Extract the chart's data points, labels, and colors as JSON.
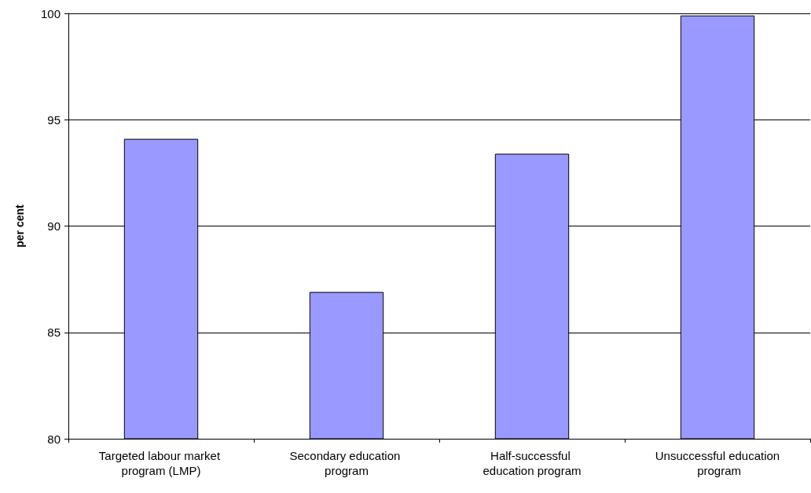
{
  "chart_data": {
    "type": "bar",
    "ylabel": "per cent",
    "categories": [
      "Targeted labour market program (LMP)",
      "Secondary education program",
      "Half-successful education program",
      "Unsuccessful education program"
    ],
    "values": [
      94.1,
      86.9,
      93.4,
      99.9
    ],
    "color": "#9999ff",
    "ylim": [
      80,
      100
    ],
    "yticks": [
      80,
      85,
      90,
      95,
      100
    ],
    "grid": "y"
  }
}
